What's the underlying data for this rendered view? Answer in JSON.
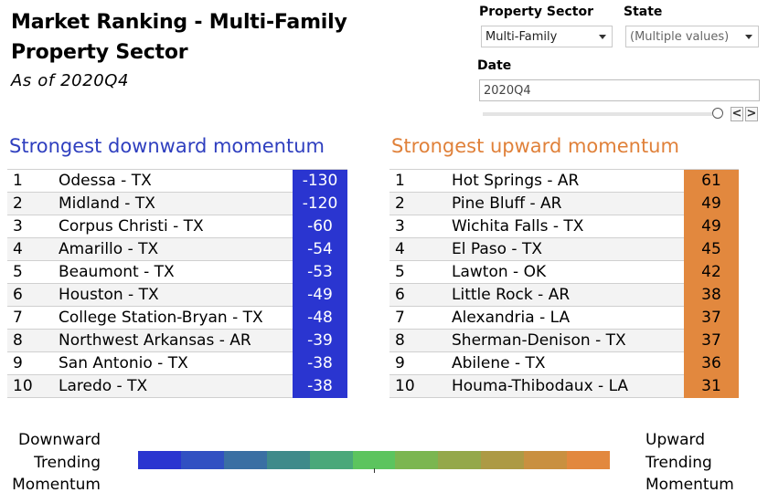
{
  "header": {
    "title": "Market Ranking - Multi-Family Property Sector",
    "subtitle": "As of 2020Q4"
  },
  "filters": {
    "property_sector_label": "Property Sector",
    "property_sector_value": "Multi-Family",
    "state_label": "State",
    "state_value": "(Multiple values)",
    "date_label": "Date",
    "date_value": "2020Q4",
    "prev_symbol": "<",
    "next_symbol": ">"
  },
  "downward": {
    "heading": "Strongest downward momentum",
    "color": "#2a35d0",
    "rows": [
      {
        "rank": "1",
        "market": "Odessa - TX",
        "value": "-130"
      },
      {
        "rank": "2",
        "market": "Midland - TX",
        "value": "-120"
      },
      {
        "rank": "3",
        "market": "Corpus Christi - TX",
        "value": "-60"
      },
      {
        "rank": "4",
        "market": "Amarillo - TX",
        "value": "-54"
      },
      {
        "rank": "5",
        "market": "Beaumont - TX",
        "value": "-53"
      },
      {
        "rank": "6",
        "market": "Houston - TX",
        "value": "-49"
      },
      {
        "rank": "7",
        "market": "College Station-Bryan - TX",
        "value": "-48"
      },
      {
        "rank": "8",
        "market": "Northwest Arkansas - AR",
        "value": "-39"
      },
      {
        "rank": "9",
        "market": "San Antonio - TX",
        "value": "-38"
      },
      {
        "rank": "10",
        "market": "Laredo - TX",
        "value": "-38"
      }
    ]
  },
  "upward": {
    "heading": "Strongest upward momentum",
    "color": "#e2883e",
    "rows": [
      {
        "rank": "1",
        "market": "Hot Springs - AR",
        "value": "61"
      },
      {
        "rank": "2",
        "market": "Pine Bluff - AR",
        "value": "49"
      },
      {
        "rank": "3",
        "market": "Wichita Falls - TX",
        "value": "49"
      },
      {
        "rank": "4",
        "market": "El Paso - TX",
        "value": "45"
      },
      {
        "rank": "5",
        "market": "Lawton - OK",
        "value": "42"
      },
      {
        "rank": "6",
        "market": "Little Rock - AR",
        "value": "38"
      },
      {
        "rank": "7",
        "market": "Alexandria - LA",
        "value": "37"
      },
      {
        "rank": "8",
        "market": "Sherman-Denison - TX",
        "value": "37"
      },
      {
        "rank": "9",
        "market": "Abilene - TX",
        "value": "36"
      },
      {
        "rank": "10",
        "market": "Houma-Thibodaux - LA",
        "value": "31"
      }
    ]
  },
  "legend": {
    "left_lines": [
      "Downward",
      "Trending",
      "Momentum"
    ],
    "right_lines": [
      "Upward",
      "Trending",
      "Momentum"
    ],
    "colors": [
      "#2a35d0",
      "#3150c2",
      "#3a6fa3",
      "#3f8a8a",
      "#4aa87a",
      "#5cc45e",
      "#7bb650",
      "#94a84a",
      "#ad9a44",
      "#c99040",
      "#e2883e"
    ]
  }
}
